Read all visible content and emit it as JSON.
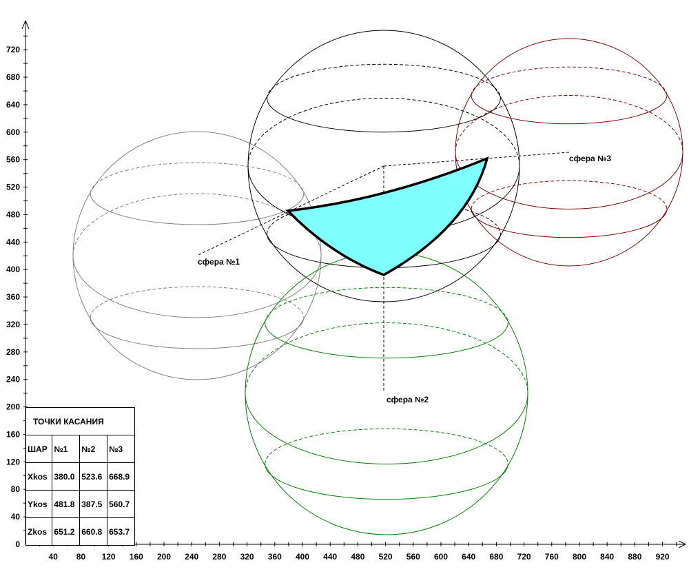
{
  "axes": {
    "x_ticks": [
      "40",
      "80",
      "120",
      "160",
      "200",
      "240",
      "280",
      "320",
      "360",
      "400",
      "440",
      "480",
      "520",
      "560",
      "600",
      "640",
      "680",
      "720",
      "760",
      "800",
      "840",
      "880",
      "920"
    ],
    "y_ticks": [
      "0",
      "40",
      "80",
      "120",
      "160",
      "200",
      "240",
      "280",
      "320",
      "360",
      "400",
      "440",
      "480",
      "520",
      "560",
      "600",
      "640",
      "680",
      "720"
    ]
  },
  "labels": {
    "sphere1": "сфера №1",
    "sphere2": "сфера №2",
    "sphere3": "сфера №3"
  },
  "colors": {
    "sphere1": "#808080",
    "sphere_main": "#000000",
    "sphere2": "#008000",
    "sphere3": "#800000",
    "region_fill": "#80ffff"
  },
  "table": {
    "title": "ТОЧКИ КАСАНИЯ",
    "header": [
      "ШАР",
      "№1",
      "№2",
      "№3"
    ],
    "rows": [
      [
        "Xkos",
        "380.0",
        "523.6",
        "668.9"
      ],
      [
        "Ykos",
        "481.8",
        "387.5",
        "560.7"
      ],
      [
        "Zkos",
        "651.2",
        "660.8",
        "653.7"
      ]
    ]
  }
}
